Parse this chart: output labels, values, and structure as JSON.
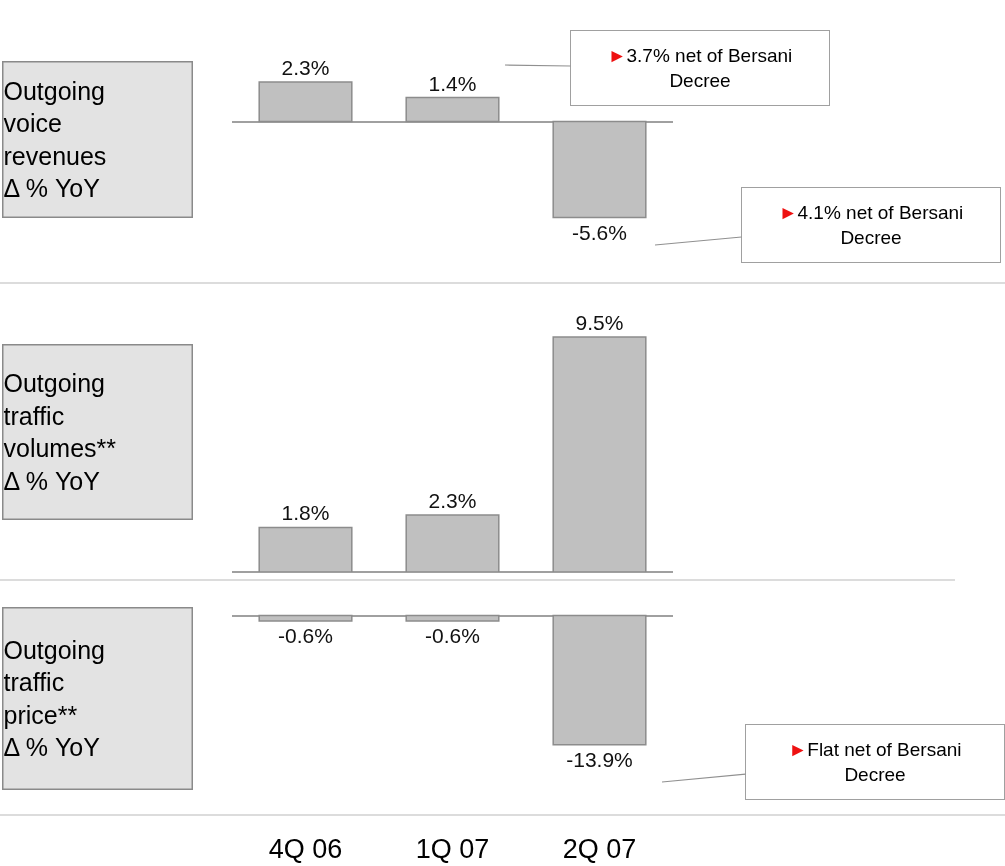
{
  "chart_data": [
    {
      "type": "bar",
      "title": "Outgoing\nvoice\nrevenues\nΔ % YoY",
      "categories": [
        null,
        null,
        null
      ],
      "values": [
        2.3,
        1.4,
        -5.6
      ],
      "value_labels": [
        "2.3%",
        "1.4%",
        "-5.6%"
      ],
      "color": "#c0c0c0",
      "tick_labels": false,
      "annotations": [
        "►3.7% net of Bersani\nDecree",
        "►4.1% net of Bersani\nDecree"
      ]
    },
    {
      "type": "bar",
      "title": "Outgoing\ntraffic\nvolumes**\nΔ % YoY",
      "categories": [
        null,
        null,
        null
      ],
      "values": [
        1.8,
        2.3,
        9.5
      ],
      "value_labels": [
        "1.8%",
        "2.3%",
        "9.5%"
      ],
      "color": "#c0c0c0",
      "tick_labels": false
    },
    {
      "type": "bar",
      "title": "Outgoing\ntraffic\nprice**\nΔ % YoY",
      "categories": [
        "4Q 06",
        "1Q 07",
        "2Q 07"
      ],
      "values": [
        -0.6,
        -0.6,
        -13.9
      ],
      "value_labels": [
        "-0.6%",
        "-0.6%",
        "-13.9%"
      ],
      "color": "#c0c0c0",
      "tick_labels": "x",
      "annotations": [
        "►Flat net of Bersani\nDecree"
      ]
    }
  ]
}
